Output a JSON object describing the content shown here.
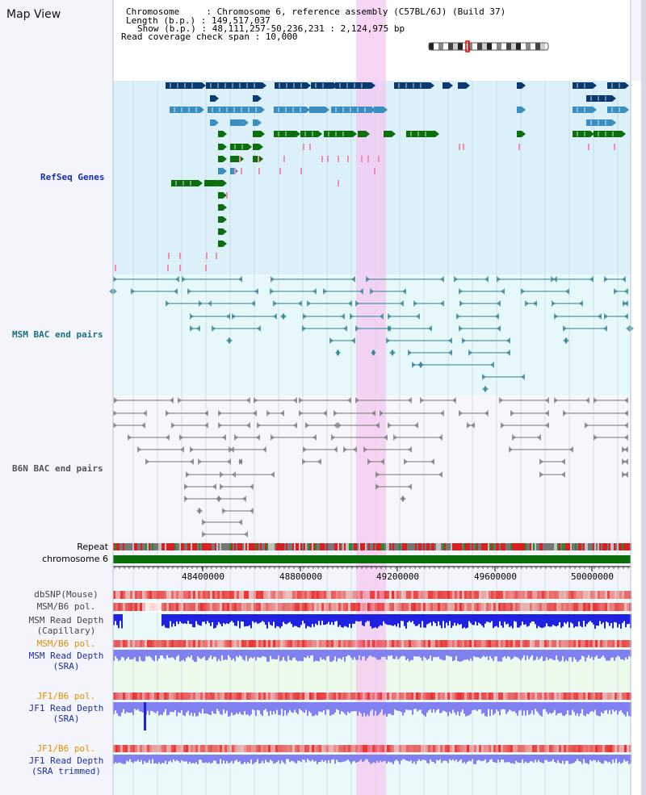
{
  "header": {
    "title": "Map View",
    "chromosome_line": "Chromosome     : Chromosome 6, reference assembly (C57BL/6J) (Build 37)",
    "length_line": "Length (b.p.) : 149,517,037",
    "show_line": "Show (b.p.) : 48,111,257-50,236,231 : 2,124,975 bp",
    "span_line": "Read coverage check span : 10,000"
  },
  "tracks": {
    "refseq": "RefSeq Genes",
    "msm_bac": "MSM BAC end pairs",
    "b6n_bac": "B6N BAC end pairs",
    "repeat": "Repeat",
    "chromosome": "chromosome 6"
  },
  "axis": {
    "ticks": [
      "48400000",
      "48800000",
      "49200000",
      "49600000",
      "50000000"
    ]
  },
  "data_tracks": {
    "dbsnp": "dbSNP(Mouse)",
    "msm_b6_pol_1": "MSM/B6 pol.",
    "msm_read_depth_cap": "MSM Read Depth\n(Capillary)",
    "msm_b6_pol_2": "MSM/B6 pol.",
    "msm_read_depth_sra": "MSM Read Depth\n(SRA)",
    "jf1_b6_pol_1": "JF1/B6 pol.",
    "jf1_read_depth_sra": "JF1 Read Depth\n(SRA)",
    "jf1_b6_pol_2": "JF1/B6 pol.",
    "jf1_read_depth_trim": "JF1 Read Depth\n(SRA trimmed)"
  },
  "colors": {
    "refseq_bg": "#dcf0fa",
    "msm_bg": "#e6f8fa",
    "b6n_bg": "#f6f6fb",
    "highlight": "#f4c8f0",
    "gene_dark": "#0a3a6e",
    "gene_mid": "#3b8fc0",
    "gene_green": "#0c6e0c",
    "msm_pair": "#2f7f8f",
    "b6n_pair": "#777777",
    "chrom_bar": "#0a6e0a",
    "depth_blue": "#2020e0",
    "depth_light": "#8080f0",
    "pol_red": "#e83030"
  }
}
